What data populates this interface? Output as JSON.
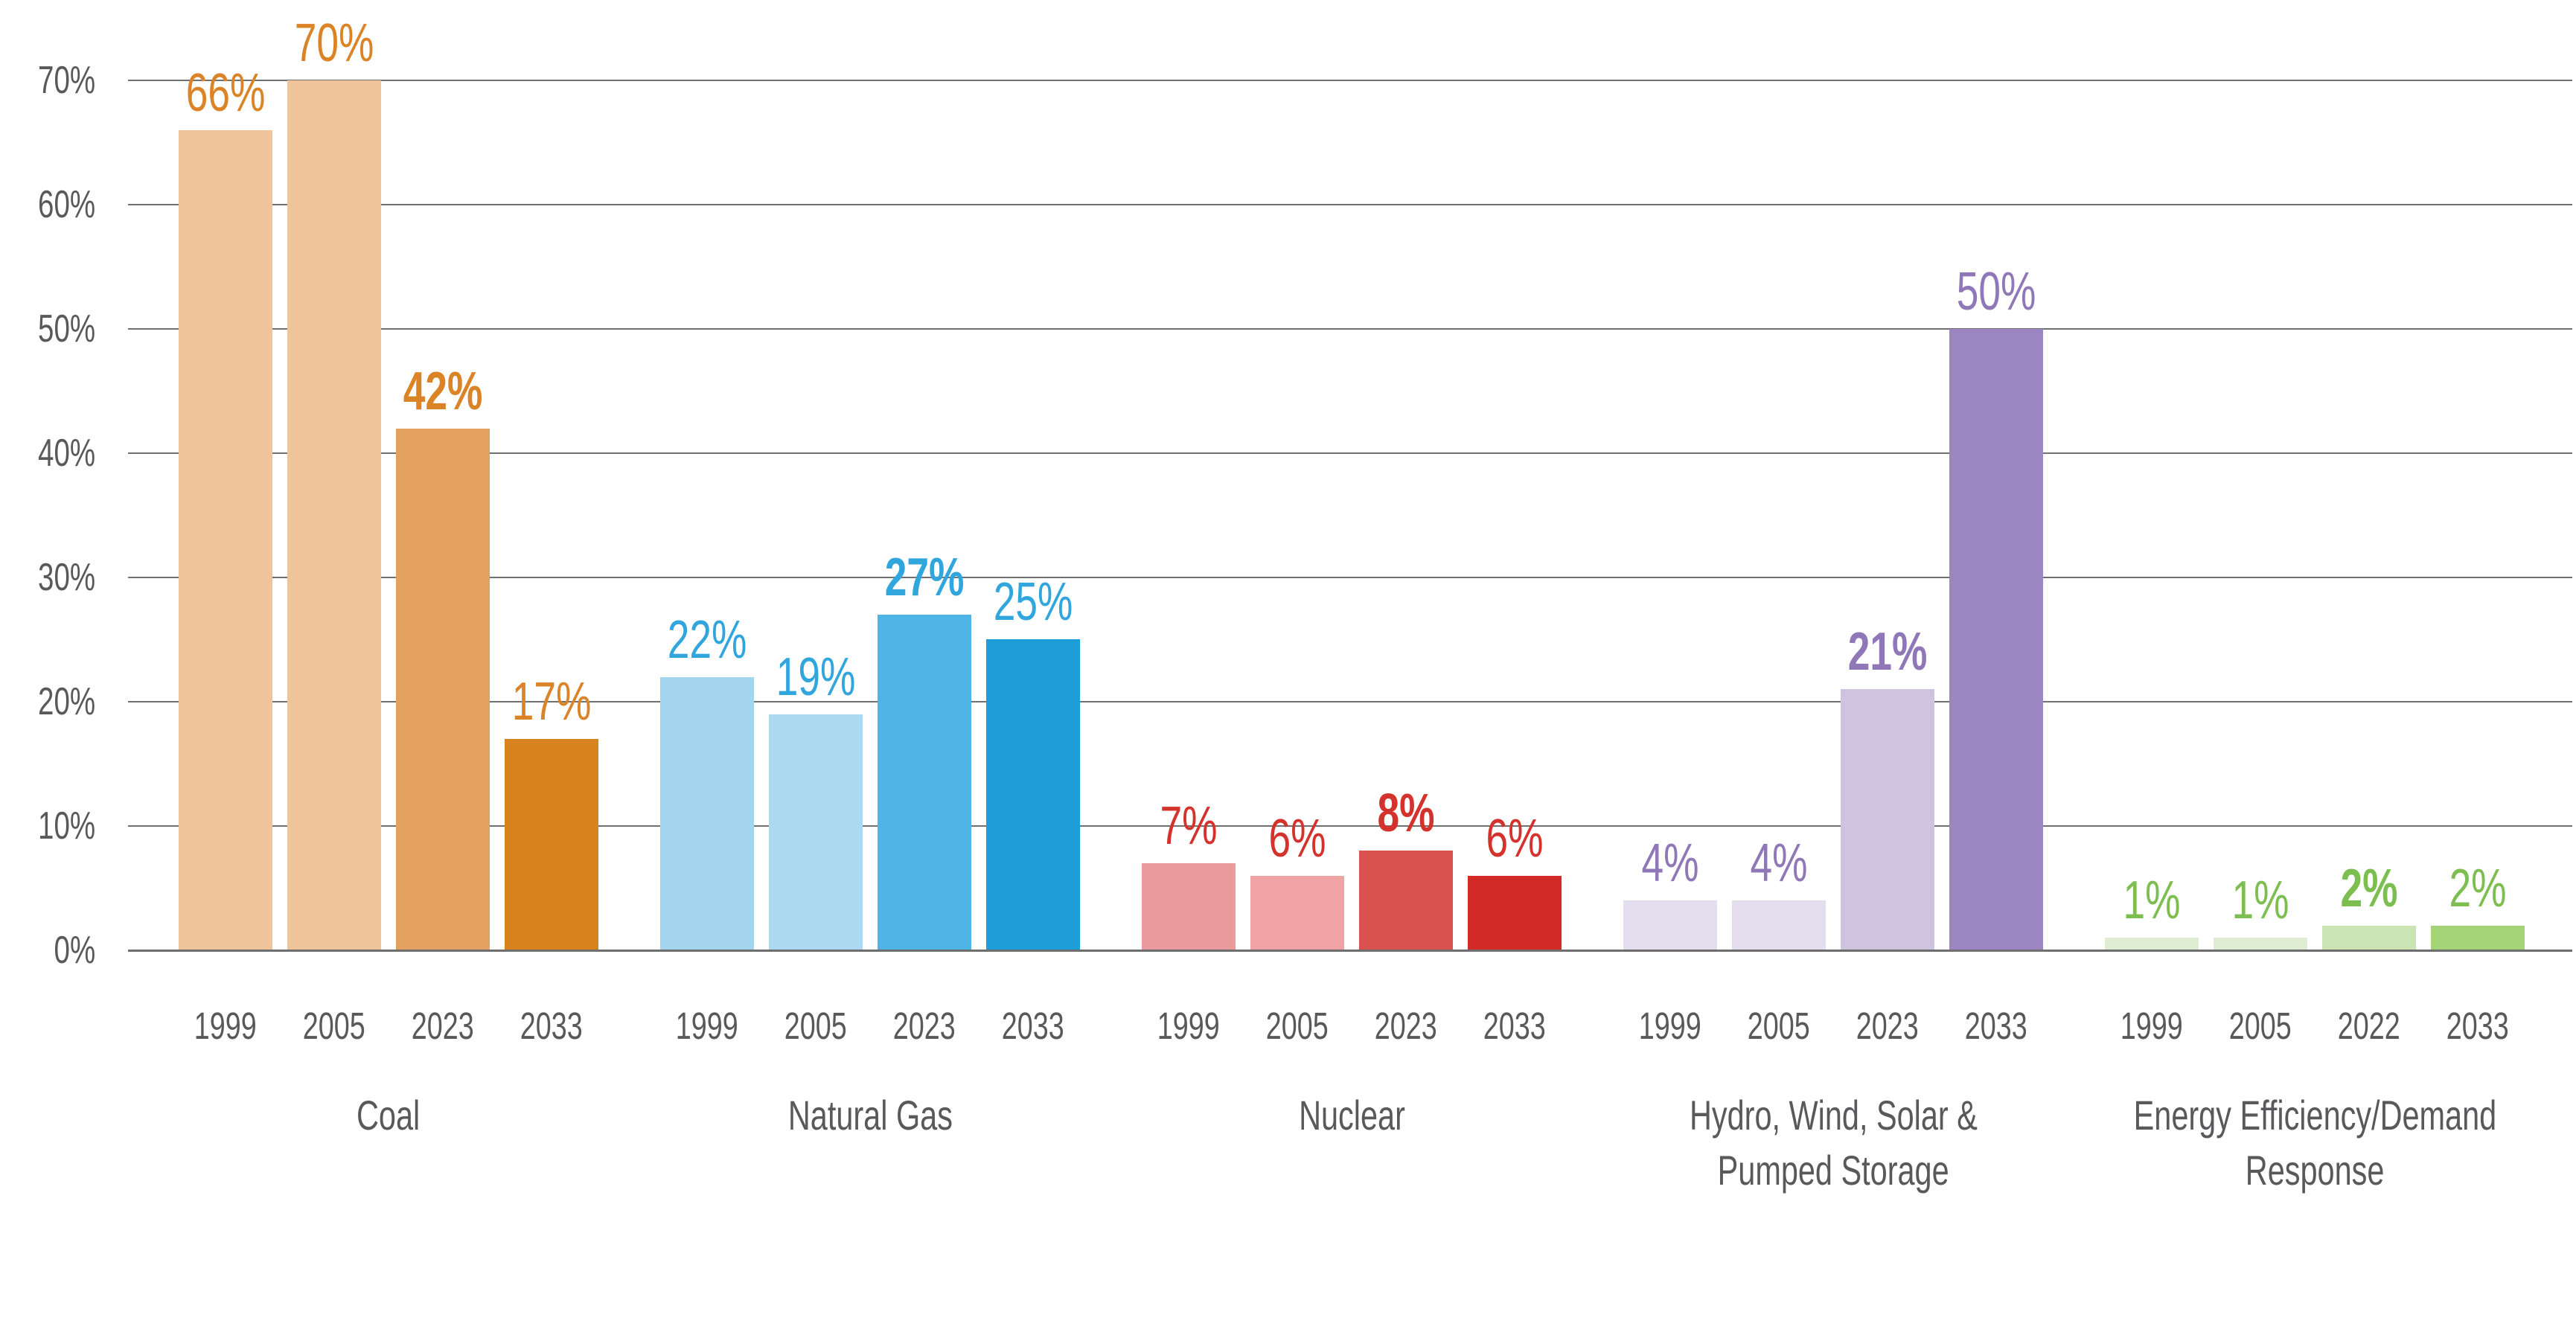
{
  "chart_data": {
    "type": "bar",
    "title": "",
    "xlabel": "",
    "ylabel": "",
    "unit": "%",
    "ylim": [
      0,
      70
    ],
    "grid": true,
    "legend_position": "none",
    "axis_text_color": "#59595B",
    "gridline_color": "#707070",
    "baseline_color": "#6E6E6E",
    "yticks": [
      {
        "label": "0%",
        "value": 0
      },
      {
        "label": "10%",
        "value": 10
      },
      {
        "label": "20%",
        "value": 20
      },
      {
        "label": "30%",
        "value": 30
      },
      {
        "label": "40%",
        "value": 40
      },
      {
        "label": "50%",
        "value": 50
      },
      {
        "label": "60%",
        "value": 60
      },
      {
        "label": "70%",
        "value": 70
      }
    ],
    "groups": [
      {
        "category_lines": [
          "Coal"
        ],
        "label_color": "#DB8327",
        "bars": [
          {
            "year": "1999",
            "value": 66,
            "label": "66%",
            "bold": false,
            "color": "#F0C49A"
          },
          {
            "year": "2005",
            "value": 70,
            "label": "70%",
            "bold": false,
            "color": "#F0C49A"
          },
          {
            "year": "2023",
            "value": 42,
            "label": "42%",
            "bold": true,
            "color": "#E2A15E"
          },
          {
            "year": "2033",
            "value": 17,
            "label": "17%",
            "bold": false,
            "color": "#D9831F"
          }
        ]
      },
      {
        "category_lines": [
          "Natural Gas"
        ],
        "label_color": "#30A6DD",
        "bars": [
          {
            "year": "1999",
            "value": 22,
            "label": "22%",
            "bold": false,
            "color": "#A5D4EF"
          },
          {
            "year": "2005",
            "value": 19,
            "label": "19%",
            "bold": false,
            "color": "#ABD9F2"
          },
          {
            "year": "2023",
            "value": 27,
            "label": "27%",
            "bold": true,
            "color": "#4FB5E7"
          },
          {
            "year": "2033",
            "value": 25,
            "label": "25%",
            "bold": false,
            "color": "#1E9ED9"
          }
        ]
      },
      {
        "category_lines": [
          "Nuclear"
        ],
        "label_color": "#D4322D",
        "bars": [
          {
            "year": "1999",
            "value": 7,
            "label": "7%",
            "bold": false,
            "color": "#EB9B9B"
          },
          {
            "year": "2005",
            "value": 6,
            "label": "6%",
            "bold": false,
            "color": "#EFA3A5"
          },
          {
            "year": "2023",
            "value": 8,
            "label": "8%",
            "bold": true,
            "color": "#DA524E"
          },
          {
            "year": "2033",
            "value": 6,
            "label": "6%",
            "bold": false,
            "color": "#D22B27"
          }
        ]
      },
      {
        "category_lines": [
          "Hydro, Wind, Solar &",
          "Pumped Storage"
        ],
        "label_color": "#8F77B8",
        "bars": [
          {
            "year": "1999",
            "value": 4,
            "label": "4%",
            "bold": false,
            "color": "#E3DDED"
          },
          {
            "year": "2005",
            "value": 4,
            "label": "4%",
            "bold": false,
            "color": "#E3DDED"
          },
          {
            "year": "2023",
            "value": 21,
            "label": "21%",
            "bold": true,
            "color": "#CFC4E0"
          },
          {
            "year": "2033",
            "value": 50,
            "label": "50%",
            "bold": false,
            "color": "#9C86C1"
          }
        ]
      },
      {
        "category_lines": [
          "Energy Efficiency/Demand",
          "Response"
        ],
        "label_color": "#7CBE4F",
        "bars": [
          {
            "year": "1999",
            "value": 1,
            "label": "1%",
            "bold": false,
            "color": "#DFEDD3"
          },
          {
            "year": "2005",
            "value": 1,
            "label": "1%",
            "bold": false,
            "color": "#DFEDD3"
          },
          {
            "year": "2022",
            "value": 2,
            "label": "2%",
            "bold": true,
            "color": "#CAE5B3"
          },
          {
            "year": "2033",
            "value": 2,
            "label": "2%",
            "bold": false,
            "color": "#A4D378"
          }
        ]
      }
    ]
  }
}
